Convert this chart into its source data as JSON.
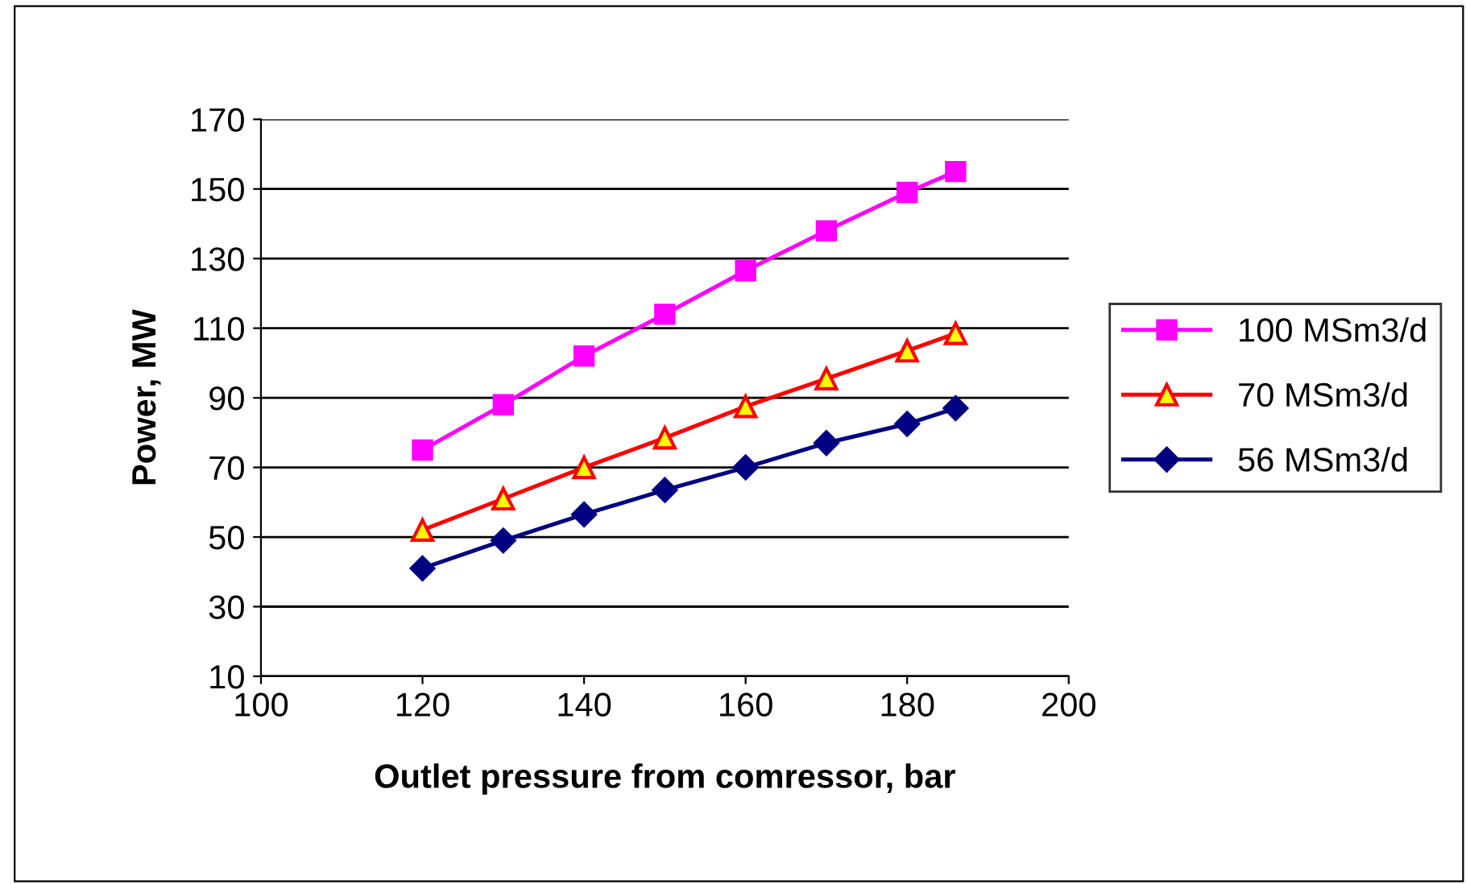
{
  "chart_data": {
    "type": "line",
    "xlabel": "Outlet pressure from comressor, bar",
    "ylabel": "Power, MW",
    "x": [
      120,
      130,
      140,
      150,
      160,
      170,
      180,
      186
    ],
    "series": [
      {
        "name": "100 MSm3/d",
        "color": "#ff00ff",
        "marker": "square",
        "values": [
          75,
          88,
          102,
          114,
          126.5,
          138,
          149,
          155
        ]
      },
      {
        "name": "70 MSm3/d",
        "color": "#ff0000",
        "marker": "triangle",
        "values": [
          52,
          61,
          70,
          78.5,
          87.5,
          95.5,
          103.5,
          108.5
        ]
      },
      {
        "name": "56 MSm3/d",
        "color": "#000080",
        "marker": "diamond",
        "values": [
          41,
          49,
          56.5,
          63.5,
          70,
          77,
          82.5,
          87
        ]
      }
    ],
    "xlim": [
      100,
      200
    ],
    "xticks": [
      100,
      120,
      140,
      160,
      180,
      200
    ],
    "ylim": [
      10,
      170
    ],
    "yticks": [
      10,
      30,
      50,
      70,
      90,
      110,
      130,
      150,
      170
    ],
    "grid": "y",
    "legend": "right",
    "line_style": "solid"
  }
}
